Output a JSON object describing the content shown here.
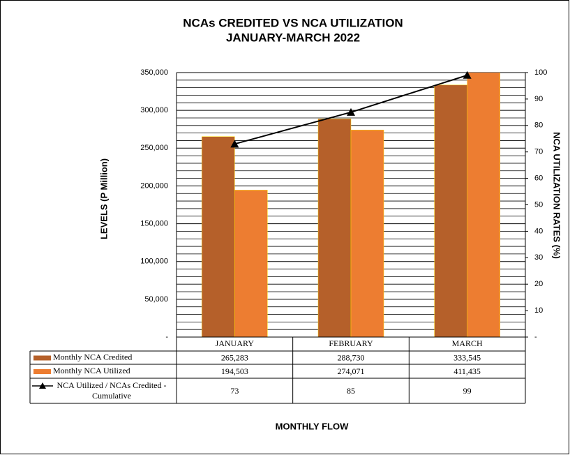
{
  "chart_data": {
    "type": "bar",
    "title": "NCAs CREDITED VS NCA UTILIZATION",
    "subtitle": "JANUARY-MARCH 2022",
    "y_label": "LEVELS (P Million)",
    "y2_label": "NCA UTILIZATION RATES (%)",
    "x_label": "MONTHLY FLOW",
    "categories": [
      "JANUARY",
      "FEBRUARY",
      "MARCH"
    ],
    "series": [
      {
        "name": "Monthly NCA Credited",
        "color": "#b5602a",
        "type": "bar",
        "values": [
          265283,
          288730,
          333545
        ],
        "value_labels": [
          "265,283",
          "288,730",
          "333,545"
        ]
      },
      {
        "name": "Monthly NCA Utilized",
        "color": "#ed7d31",
        "type": "bar",
        "values": [
          194503,
          274071,
          411435
        ],
        "value_labels": [
          "194,503",
          "274,071",
          "411,435"
        ]
      },
      {
        "name": "NCA Utilized / NCAs Credited - Cumulative",
        "color": "#000000",
        "type": "line",
        "axis": "y2",
        "values": [
          73,
          85,
          99
        ]
      }
    ],
    "ylim": [
      0,
      350000
    ],
    "yticks": [
      {
        "value": 0,
        "label": "-"
      },
      {
        "value": 50000,
        "label": "50,000"
      },
      {
        "value": 100000,
        "label": "100,000"
      },
      {
        "value": 150000,
        "label": "150,000"
      },
      {
        "value": 200000,
        "label": "200,000"
      },
      {
        "value": 250000,
        "label": "250,000"
      },
      {
        "value": 300000,
        "label": "300,000"
      },
      {
        "value": 350000,
        "label": "350,000"
      }
    ],
    "yminorticks": [
      10000,
      20000,
      30000,
      40000,
      60000,
      70000,
      80000,
      90000,
      110000,
      120000,
      130000,
      140000,
      160000,
      170000,
      180000,
      190000,
      210000,
      220000,
      230000,
      240000,
      260000,
      270000,
      280000,
      290000,
      310000,
      320000,
      330000,
      340000
    ],
    "y2lim": [
      0,
      100
    ],
    "y2ticks": [
      {
        "value": 0,
        "label": "-"
      },
      10,
      20,
      30,
      40,
      50,
      60,
      70,
      80,
      90,
      100
    ],
    "grid": true
  }
}
